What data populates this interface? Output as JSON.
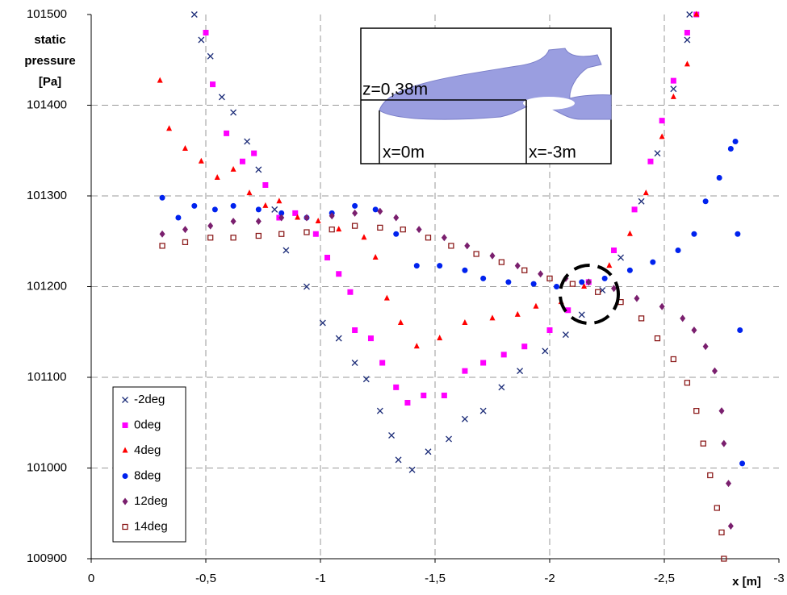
{
  "chart_data": {
    "type": "scatter",
    "ylabel": [
      "static",
      "pressure",
      "[Pa]"
    ],
    "xlabel": "x [m]",
    "annotations": [
      "z=0,38m",
      "x=0m",
      "x=-3m"
    ],
    "xlim": [
      0,
      -3
    ],
    "ylim": [
      100900,
      101500
    ],
    "xticks": [
      0,
      {
        "value": -0.5,
        "label": "-0,5"
      },
      -1,
      {
        "value": -1.5,
        "label": "-1,5"
      },
      -2,
      {
        "value": -2.5,
        "label": "-2,5"
      },
      -3
    ],
    "yticks": [
      100900,
      101000,
      101100,
      101200,
      101300,
      101400,
      101500
    ],
    "grid": true,
    "legend": "lower left",
    "series": [
      {
        "name": "-2deg",
        "color": "#1f2f7a",
        "marker": "x",
        "x": [
          -0.45,
          -0.48,
          -0.52,
          -0.57,
          -0.62,
          -0.68,
          -0.73,
          -0.8,
          -0.85,
          -0.94,
          -1.01,
          -1.08,
          -1.15,
          -1.2,
          -1.26,
          -1.31,
          -1.34,
          -1.4,
          -1.47,
          -1.56,
          -1.63,
          -1.71,
          -1.79,
          -1.87,
          -1.98,
          -2.07,
          -2.14,
          -2.23,
          -2.31,
          -2.4,
          -2.47,
          -2.54,
          -2.6,
          -2.61
        ],
        "values": [
          101500,
          101472,
          101454,
          101409,
          101392,
          101360,
          101329,
          101285,
          101240,
          101200,
          101160,
          101143,
          101116,
          101098,
          101063,
          101036,
          101009,
          100998,
          101018,
          101032,
          101054,
          101063,
          101089,
          101107,
          101129,
          101147,
          101169,
          101196,
          101232,
          101294,
          101347,
          101418,
          101472,
          101500
        ]
      },
      {
        "name": "0deg",
        "color": "#ff00ff",
        "marker": "square",
        "x": [
          -0.5,
          -0.53,
          -0.59,
          -0.66,
          -0.71,
          -0.76,
          -0.82,
          -0.89,
          -0.98,
          -1.03,
          -1.08,
          -1.13,
          -1.15,
          -1.22,
          -1.27,
          -1.33,
          -1.38,
          -1.45,
          -1.54,
          -1.63,
          -1.71,
          -1.8,
          -1.89,
          -2.0,
          -2.08,
          -2.17,
          -2.28,
          -2.37,
          -2.44,
          -2.49,
          -2.54,
          -2.6,
          -2.64
        ],
        "values": [
          101480,
          101423,
          101369,
          101338,
          101347,
          101312,
          101276,
          101281,
          101258,
          101232,
          101214,
          101194,
          101152,
          101143,
          101116,
          101089,
          101072,
          101080,
          101080,
          101107,
          101116,
          101125,
          101134,
          101152,
          101174,
          101205,
          101240,
          101285,
          101338,
          101383,
          101427,
          101480,
          101500
        ]
      },
      {
        "name": "4deg",
        "color": "#ff0000",
        "marker": "triangle",
        "x": [
          -0.3,
          -0.34,
          -0.41,
          -0.48,
          -0.55,
          -0.62,
          -0.69,
          -0.76,
          -0.82,
          -0.9,
          -0.99,
          -1.08,
          -1.19,
          -1.24,
          -1.29,
          -1.35,
          -1.42,
          -1.52,
          -1.63,
          -1.75,
          -1.86,
          -1.94,
          -2.05,
          -2.15,
          -2.26,
          -2.35,
          -2.42,
          -2.49,
          -2.54,
          -2.6,
          -2.64
        ],
        "values": [
          101427,
          101374,
          101352,
          101338,
          101320,
          101329,
          101303,
          101289,
          101294,
          101276,
          101272,
          101263,
          101254,
          101232,
          101187,
          101160,
          101134,
          101143,
          101160,
          101165,
          101169,
          101178,
          101183,
          101200,
          101223,
          101258,
          101303,
          101365,
          101409,
          101445,
          101500
        ]
      },
      {
        "name": "8deg",
        "color": "#0022ee",
        "marker": "circle",
        "x": [
          -0.31,
          -0.38,
          -0.45,
          -0.54,
          -0.62,
          -0.73,
          -0.83,
          -0.94,
          -1.05,
          -1.15,
          -1.24,
          -1.33,
          -1.42,
          -1.52,
          -1.63,
          -1.71,
          -1.82,
          -1.93,
          -2.03,
          -2.14,
          -2.24,
          -2.35,
          -2.45,
          -2.56,
          -2.63,
          -2.68,
          -2.74,
          -2.79,
          -2.81,
          -2.82,
          -2.83,
          -2.84
        ],
        "values": [
          101298,
          101276,
          101289,
          101285,
          101289,
          101285,
          101281,
          101276,
          101281,
          101289,
          101285,
          101258,
          101223,
          101223,
          101218,
          101209,
          101205,
          101203,
          101200,
          101205,
          101209,
          101218,
          101227,
          101240,
          101258,
          101294,
          101320,
          101352,
          101360,
          101258,
          101152,
          101005
        ]
      },
      {
        "name": "12deg",
        "color": "#7a1f6e",
        "marker": "diamond",
        "x": [
          -0.31,
          -0.41,
          -0.52,
          -0.62,
          -0.73,
          -0.83,
          -0.94,
          -1.05,
          -1.15,
          -1.26,
          -1.33,
          -1.43,
          -1.54,
          -1.64,
          -1.75,
          -1.86,
          -1.96,
          -2.07,
          -2.17,
          -2.28,
          -2.38,
          -2.49,
          -2.58,
          -2.63,
          -2.68,
          -2.72,
          -2.75,
          -2.76,
          -2.78,
          -2.79
        ],
        "values": [
          101258,
          101263,
          101267,
          101272,
          101272,
          101276,
          101276,
          101278,
          101281,
          101283,
          101276,
          101263,
          101254,
          101245,
          101234,
          101223,
          101214,
          101209,
          101205,
          101198,
          101187,
          101178,
          101165,
          101152,
          101134,
          101107,
          101063,
          101027,
          100983,
          100936
        ]
      },
      {
        "name": "14deg",
        "color": "#8b1a1a",
        "marker": "hollow-square",
        "x": [
          -0.31,
          -0.41,
          -0.52,
          -0.62,
          -0.73,
          -0.83,
          -0.94,
          -1.05,
          -1.15,
          -1.26,
          -1.36,
          -1.47,
          -1.57,
          -1.68,
          -1.79,
          -1.89,
          -2.0,
          -2.1,
          -2.21,
          -2.31,
          -2.4,
          -2.47,
          -2.54,
          -2.6,
          -2.64,
          -2.67,
          -2.7,
          -2.73,
          -2.75,
          -2.76
        ],
        "values": [
          101245,
          101249,
          101254,
          101254,
          101256,
          101258,
          101260,
          101263,
          101267,
          101265,
          101263,
          101254,
          101245,
          101236,
          101227,
          101218,
          101209,
          101203,
          101194,
          101183,
          101165,
          101143,
          101120,
          101094,
          101063,
          101027,
          100992,
          100956,
          100929,
          100900
        ]
      }
    ]
  }
}
